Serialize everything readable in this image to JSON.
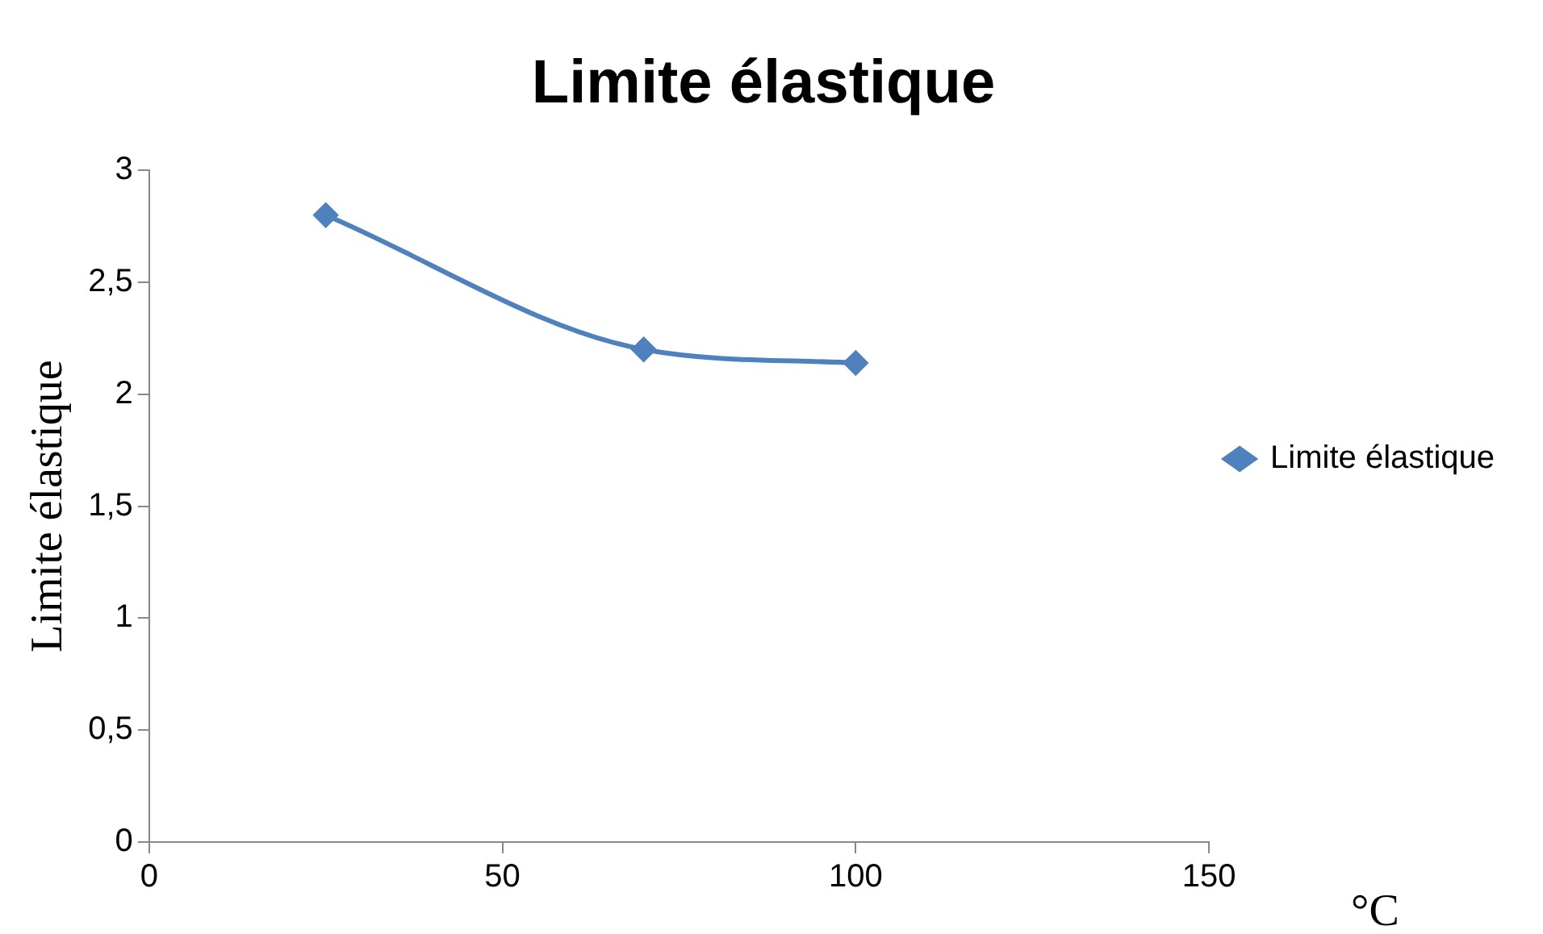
{
  "chart_data": {
    "type": "line",
    "title": "Limite élastique",
    "xlabel": "°C",
    "ylabel": "Limite élastique",
    "x": [
      25,
      70,
      100
    ],
    "series": [
      {
        "name": "Limite élastique",
        "color": "#4f81bd",
        "values": [
          2.8,
          2.2,
          2.14
        ]
      }
    ],
    "xlim": [
      0,
      150
    ],
    "xticks": [
      0,
      50,
      100,
      150
    ],
    "ylim": [
      0,
      3
    ],
    "yticks": [
      0,
      {
        "value": 0.5,
        "label": "0,5"
      },
      1,
      {
        "value": 1.5,
        "label": "1,5"
      },
      2,
      {
        "value": 2.5,
        "label": "2,5"
      },
      3
    ],
    "grid": false,
    "legend": "right",
    "marker": "diamond",
    "line_style": "solid"
  }
}
